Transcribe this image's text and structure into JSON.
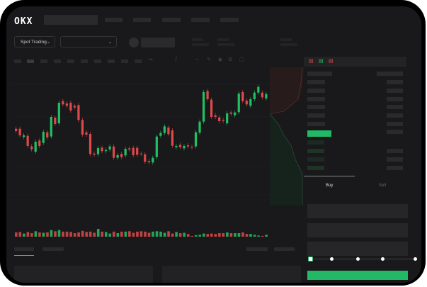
{
  "header": {
    "logo": "OKX"
  },
  "market": {
    "mode_label": "Spot Trading",
    "chevron": "chevron-down-icon"
  },
  "order_form": {
    "tabs": [
      {
        "label": "Buy",
        "active": true
      },
      {
        "label": "Sell",
        "active": false
      }
    ],
    "slider_percent": 0
  },
  "colors": {
    "up": "#22c063",
    "down": "#e0494b",
    "background": "#19191b",
    "accent": "#22b865"
  },
  "chart_data": {
    "type": "candlestick",
    "candles": [
      [
        185,
        175,
        "down"
      ],
      [
        185,
        157,
        "down"
      ],
      [
        150,
        157,
        "up"
      ],
      [
        155,
        112,
        "down"
      ],
      [
        110,
        98,
        "down"
      ],
      [
        88,
        130,
        "up"
      ],
      [
        135,
        112,
        "down"
      ],
      [
        125,
        172,
        "up"
      ],
      [
        170,
        148,
        "down"
      ],
      [
        152,
        235,
        "up"
      ],
      [
        232,
        205,
        "down"
      ],
      [
        208,
        295,
        "up"
      ],
      [
        302,
        288,
        "down"
      ],
      [
        292,
        282,
        "down"
      ],
      [
        295,
        262,
        "down"
      ],
      [
        282,
        275,
        "down"
      ],
      [
        285,
        222,
        "down"
      ],
      [
        222,
        160,
        "down"
      ],
      [
        170,
        160,
        "down"
      ],
      [
        163,
        78,
        "down"
      ],
      [
        80,
        75,
        "down"
      ],
      [
        77,
        103,
        "up"
      ],
      [
        105,
        90,
        "down"
      ],
      [
        90,
        95,
        "up"
      ],
      [
        97,
        110,
        "up"
      ],
      [
        110,
        62,
        "down"
      ],
      [
        62,
        73,
        "up"
      ],
      [
        78,
        65,
        "down"
      ],
      [
        72,
        100,
        "up"
      ],
      [
        102,
        97,
        "down"
      ],
      [
        104,
        73,
        "down"
      ],
      [
        104,
        75,
        "down"
      ],
      [
        80,
        78,
        "down"
      ],
      [
        77,
        45,
        "down"
      ],
      [
        48,
        43,
        "down"
      ],
      [
        42,
        62,
        "up"
      ],
      [
        65,
        152,
        "up"
      ],
      [
        155,
        167,
        "up"
      ],
      [
        167,
        195,
        "up"
      ],
      [
        190,
        162,
        "down"
      ],
      [
        178,
        113,
        "down"
      ],
      [
        107,
        112,
        "up"
      ],
      [
        117,
        107,
        "down"
      ],
      [
        102,
        112,
        "up"
      ],
      [
        115,
        110,
        "down"
      ],
      [
        108,
        106,
        "down"
      ],
      [
        110,
        170,
        "up"
      ],
      [
        168,
        215,
        "up"
      ],
      [
        215,
        340,
        "up"
      ],
      [
        345,
        310,
        "down"
      ],
      [
        308,
        235,
        "down"
      ],
      [
        242,
        235,
        "down"
      ],
      [
        233,
        217,
        "down"
      ],
      [
        222,
        218,
        "down"
      ],
      [
        208,
        250,
        "up"
      ],
      [
        254,
        248,
        "down"
      ],
      [
        242,
        254,
        "up"
      ],
      [
        255,
        334,
        "up"
      ],
      [
        340,
        302,
        "down"
      ],
      [
        304,
        288,
        "down"
      ],
      [
        282,
        310,
        "up"
      ],
      [
        310,
        338,
        "up"
      ],
      [
        338,
        362,
        "up"
      ],
      [
        338,
        318,
        "down"
      ],
      [
        313,
        332,
        "up"
      ]
    ],
    "volumes": [
      11,
      12,
      8,
      12,
      9,
      14,
      11,
      10,
      11,
      17,
      14,
      17,
      13,
      13,
      12,
      9,
      11,
      15,
      12,
      13,
      10,
      20,
      13,
      12,
      8,
      13,
      9,
      13,
      13,
      14,
      10,
      13,
      14,
      13,
      10,
      13,
      14,
      13,
      10,
      14,
      8,
      12,
      9,
      10,
      7,
      2,
      4,
      5,
      8,
      7,
      8,
      7,
      9,
      9,
      11,
      9,
      9,
      9,
      11,
      7,
      7,
      5,
      3,
      2,
      5
    ]
  }
}
